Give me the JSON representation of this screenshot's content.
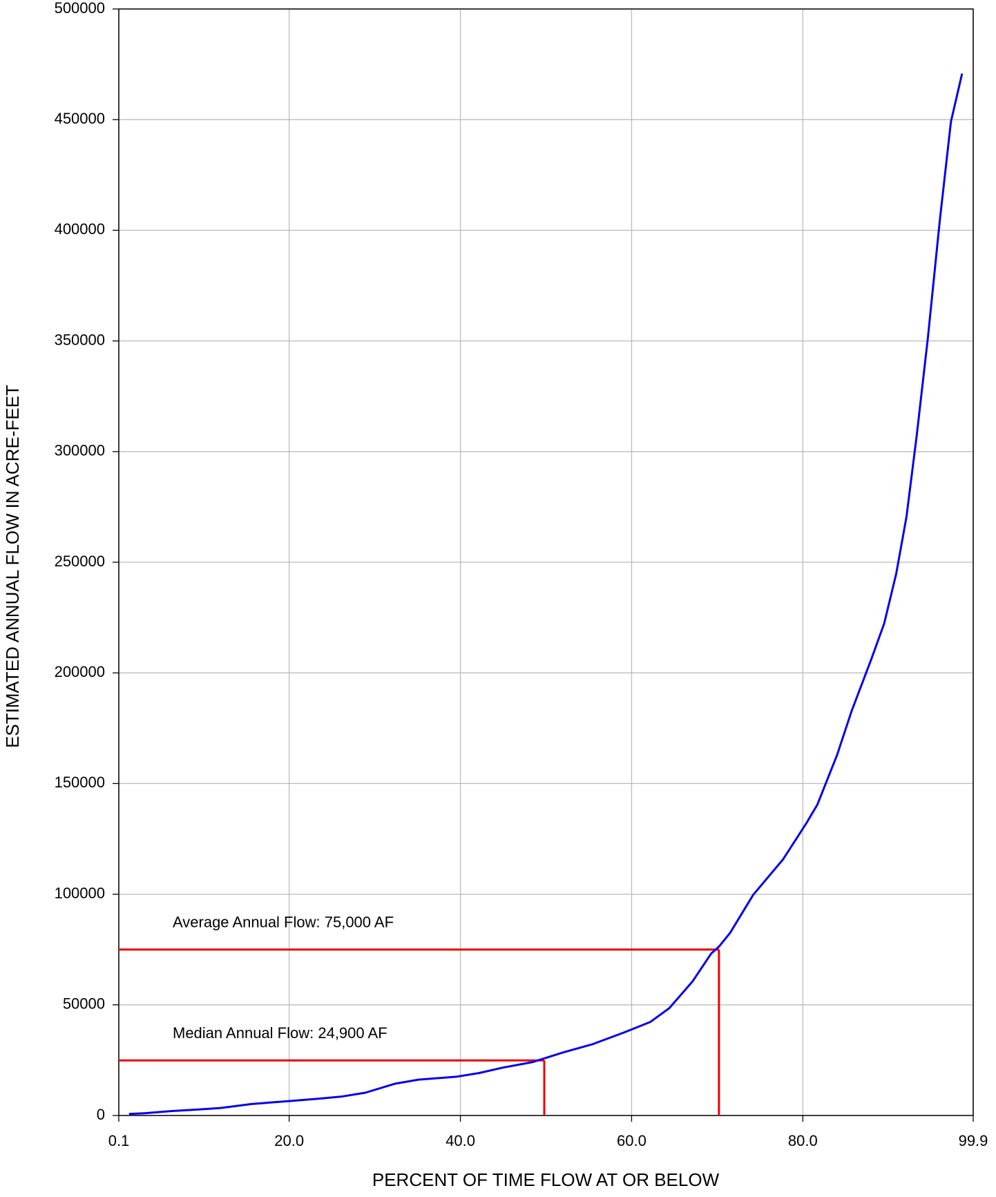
{
  "chart_data": {
    "type": "line",
    "xlabel": "PERCENT OF TIME FLOW AT OR BELOW",
    "ylabel": "ESTIMATED ANNUAL FLOW IN ACRE-FEET",
    "x": [
      1.3,
      3.1,
      6.2,
      9.3,
      12,
      15.6,
      20,
      23.5,
      26.2,
      28.9,
      32.4,
      35.1,
      39.5,
      42.2,
      44.9,
      48.4,
      49.8,
      52,
      55.5,
      59.1,
      62.2,
      64.4,
      67.1,
      69.3,
      70.2,
      71.5,
      74.2,
      77.7,
      80.4,
      81.7,
      84,
      85.7,
      88,
      89.5,
      90.9,
      92.1,
      93.3,
      94.6,
      96,
      97.3,
      98.6
    ],
    "values": [
      700,
      1000,
      2000,
      2700,
      3400,
      5200,
      6500,
      7600,
      8600,
      10300,
      14400,
      16200,
      17500,
      19200,
      21600,
      24100,
      25800,
      28500,
      32300,
      37500,
      42300,
      48500,
      60500,
      73200,
      76300,
      82500,
      99700,
      115800,
      132000,
      140500,
      162900,
      182800,
      206200,
      222300,
      244700,
      270400,
      307200,
      351200,
      404500,
      449100,
      470800
    ],
    "color": "#0000ee",
    "xlim": [
      0.1,
      99.9
    ],
    "xticks": [
      0.1,
      {
        "value": 20,
        "label": "20.0"
      },
      {
        "value": 40,
        "label": "40.0"
      },
      {
        "value": 60,
        "label": "60.0"
      },
      {
        "value": 80,
        "label": "80.0"
      },
      99.9
    ],
    "ylim": [
      0,
      500000
    ],
    "yticks": [
      0,
      50000,
      100000,
      150000,
      200000,
      250000,
      300000,
      350000,
      400000,
      450000,
      500000
    ],
    "grid": true,
    "annotations": [
      {
        "text": "Average Annual Flow: 75,000 AF",
        "x": 70.2,
        "y": 75000,
        "color": "#ee0000"
      },
      {
        "text": "Median Annual Flow: 24,900 AF",
        "x": 49.8,
        "y": 24900,
        "color": "#ee0000"
      }
    ]
  }
}
